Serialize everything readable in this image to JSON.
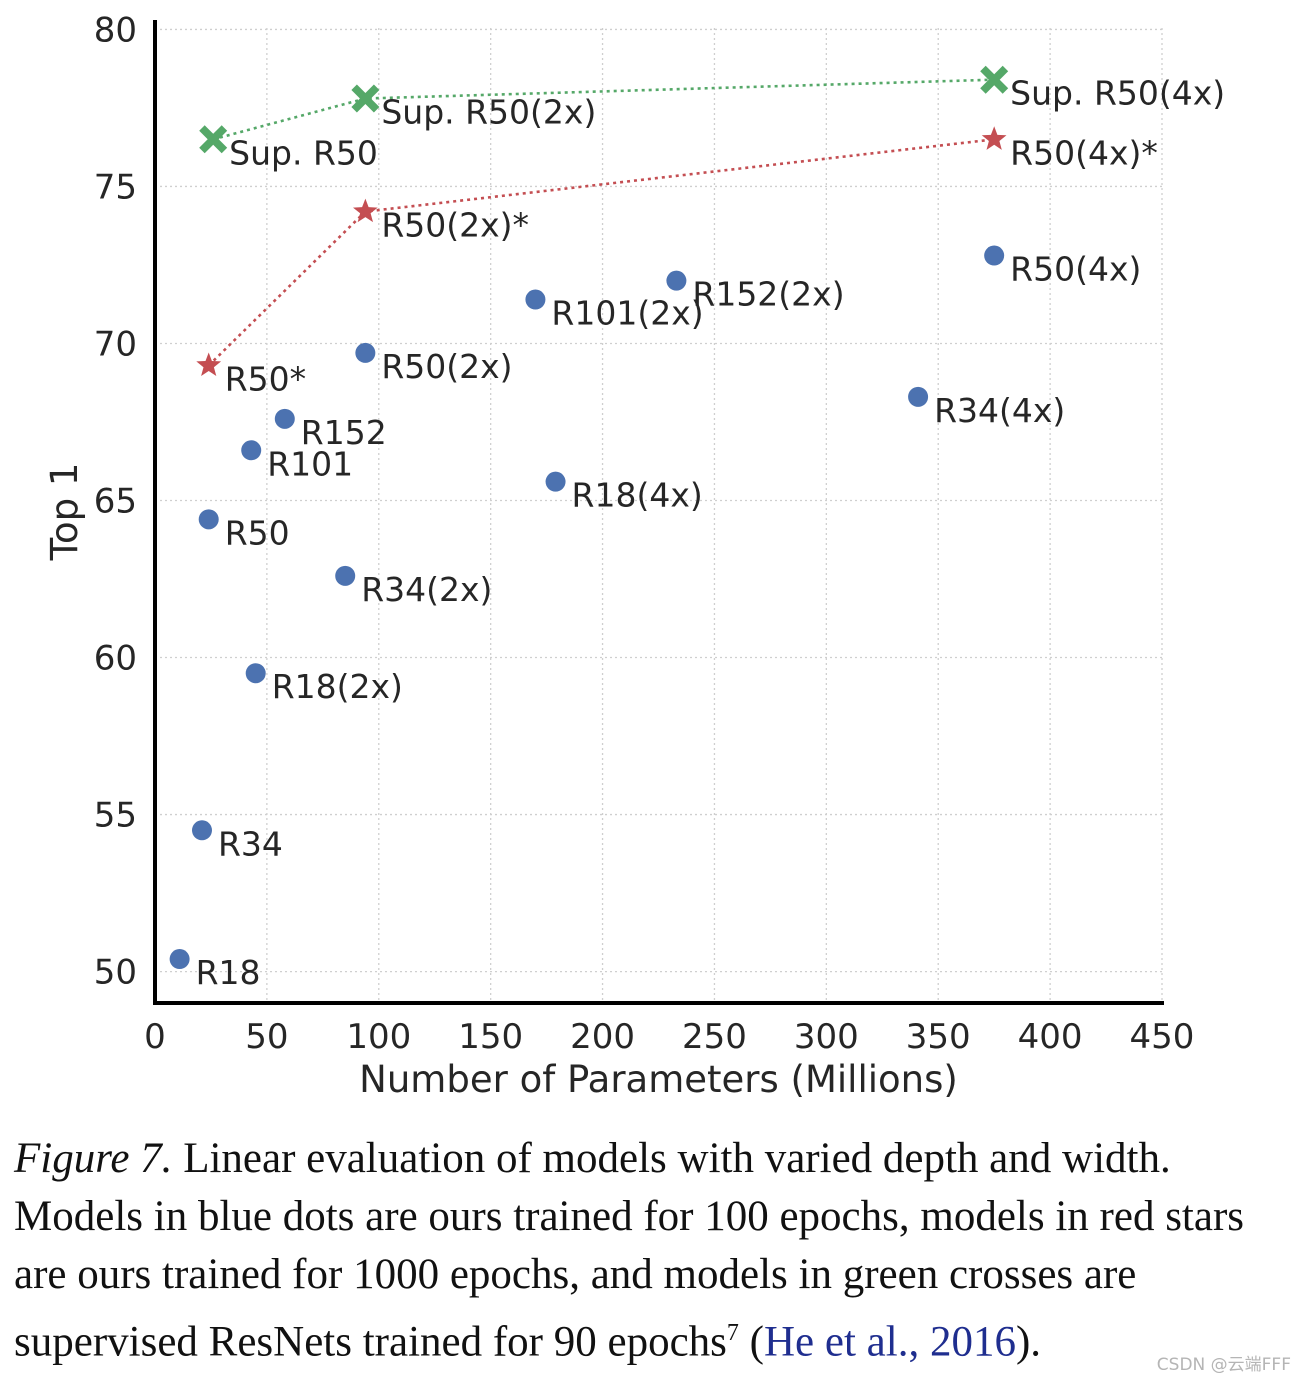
{
  "chart_data": {
    "type": "scatter",
    "xlabel": "Number of Parameters (Millions)",
    "ylabel": "Top 1",
    "xlim": [
      0,
      450
    ],
    "ylim": [
      49,
      80.3
    ],
    "xticks": [
      0,
      50,
      100,
      150,
      200,
      250,
      300,
      350,
      400,
      450
    ],
    "yticks": [
      50,
      55,
      60,
      65,
      70,
      75,
      80
    ],
    "grid": true,
    "series": [
      {
        "marker": "circle",
        "color": "#4c72b0",
        "connected": false,
        "points": [
          {
            "label": "R18",
            "x": 11,
            "y": 50.4
          },
          {
            "label": "R34",
            "x": 21,
            "y": 54.5
          },
          {
            "label": "R50",
            "x": 24,
            "y": 64.4
          },
          {
            "label": "R101",
            "x": 43,
            "y": 66.6
          },
          {
            "label": "R152",
            "x": 58,
            "y": 67.6
          },
          {
            "label": "R18(2x)",
            "x": 45,
            "y": 59.5
          },
          {
            "label": "R34(2x)",
            "x": 85,
            "y": 62.6
          },
          {
            "label": "R50(2x)",
            "x": 94,
            "y": 69.7
          },
          {
            "label": "R101(2x)",
            "x": 170,
            "y": 71.4
          },
          {
            "label": "R152(2x)",
            "x": 233,
            "y": 72.0
          },
          {
            "label": "R18(4x)",
            "x": 179,
            "y": 65.6
          },
          {
            "label": "R34(4x)",
            "x": 341,
            "y": 68.3
          },
          {
            "label": "R50(4x)",
            "x": 375,
            "y": 72.8
          }
        ]
      },
      {
        "marker": "star",
        "color": "#c44e52",
        "connected": true,
        "points": [
          {
            "label": "R50*",
            "x": 24,
            "y": 69.3
          },
          {
            "label": "R50(2x)*",
            "x": 94,
            "y": 74.2
          },
          {
            "label": "R50(4x)*",
            "x": 375,
            "y": 76.5
          }
        ]
      },
      {
        "marker": "cross",
        "color": "#55a868",
        "connected": true,
        "points": [
          {
            "label": "Sup. R50",
            "x": 26,
            "y": 76.5
          },
          {
            "label": "Sup. R50(2x)",
            "x": 94,
            "y": 77.8
          },
          {
            "label": "Sup. R50(4x)",
            "x": 375,
            "y": 78.4
          }
        ]
      }
    ]
  },
  "caption": {
    "figure_label": "Figure 7.",
    "text_1": " Linear evaluation of models with varied depth and width. Models in blue dots are ours trained for 100 epochs, models in red stars are ours trained for 1000 epochs, and models in green crosses are supervised ResNets trained for 90 epochs",
    "footnote_mark": "7",
    "text_2": " (",
    "citation": "He et al., 2016",
    "text_3": ")."
  },
  "watermark": "CSDN @云端FFF"
}
